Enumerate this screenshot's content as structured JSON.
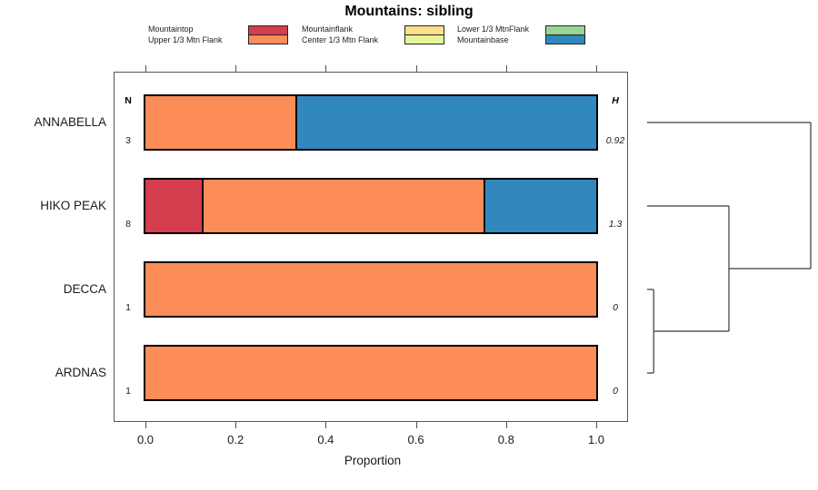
{
  "title": "Mountains: sibling",
  "columns": {
    "n_header": "N",
    "h_header": "H"
  },
  "axis": {
    "label": "Proportion",
    "tick_labels": [
      "0.0",
      "0.2",
      "0.4",
      "0.6",
      "0.8",
      "1.0"
    ],
    "tick_values": [
      0,
      0.2,
      0.4,
      0.6,
      0.8,
      1.0
    ]
  },
  "legend": {
    "columns": [
      [
        "Mountaintop",
        "Upper 1/3 Mtn Flank"
      ],
      [
        "Mountainflank",
        "Center 1/3 Mtn Flank"
      ],
      [
        "Lower 1/3 MtnFlank",
        "Mountainbase"
      ]
    ]
  },
  "chart_data": {
    "type": "bar",
    "orientation": "horizontal",
    "stacked": true,
    "title": "Mountains: sibling",
    "xlabel": "Proportion",
    "xlim": [
      0,
      1
    ],
    "x_ticks": [
      0,
      0.2,
      0.4,
      0.6,
      0.8,
      1.0
    ],
    "grid": false,
    "legend_position": "top",
    "categories": [
      "ANNABELLA",
      "HIKO PEAK",
      "DECCA",
      "ARDNAS"
    ],
    "series": [
      {
        "name": "Mountaintop",
        "color": "#D53E4F",
        "values": [
          0,
          0.125,
          0,
          0
        ]
      },
      {
        "name": "Upper 1/3 Mtn Flank",
        "color": "#FC8D59",
        "values": [
          0.3333,
          0.625,
          1,
          1
        ]
      },
      {
        "name": "Mountainflank",
        "color": "#FEE08B",
        "values": [
          0,
          0,
          0,
          0
        ]
      },
      {
        "name": "Center 1/3 Mtn Flank",
        "color": "#E6F598",
        "values": [
          0,
          0,
          0,
          0
        ]
      },
      {
        "name": "Lower 1/3 MtnFlank",
        "color": "#99D594",
        "values": [
          0,
          0,
          0,
          0
        ]
      },
      {
        "name": "Mountainbase",
        "color": "#3288BD",
        "values": [
          0.6667,
          0.25,
          0,
          0
        ]
      }
    ],
    "n_values": [
      "3",
      "8",
      "1",
      "1"
    ],
    "h_values": [
      "0.92",
      "1.3",
      "0",
      "0"
    ]
  },
  "dendrogram": {
    "tree": {
      "height": 1.0,
      "children": [
        {
          "leaf": "ANNABELLA"
        },
        {
          "height": 0.5,
          "children": [
            {
              "leaf": "HIKO PEAK"
            },
            {
              "height": 0.04,
              "children": [
                {
                  "leaf": "DECCA"
                },
                {
                  "leaf": "ARDNAS"
                }
              ]
            }
          ]
        }
      ]
    }
  }
}
